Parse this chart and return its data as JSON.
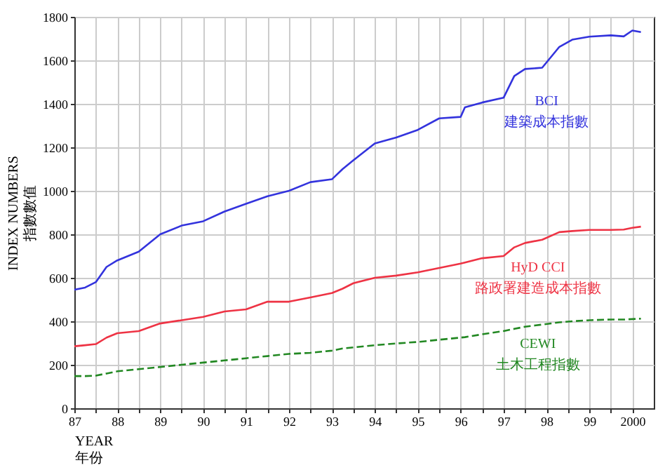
{
  "chart_data": {
    "type": "line",
    "xlabel": "YEAR\n年份",
    "ylabel": "INDEX NUMBERS\n指數數值",
    "x": [
      1987,
      1987.25,
      1987.5,
      1987.75,
      1988,
      1988.5,
      1989,
      1989.5,
      1990,
      1990.5,
      1991,
      1991.5,
      1992,
      1992.5,
      1993,
      1993.25,
      1993.5,
      1994,
      1994.5,
      1995,
      1995.5,
      1996,
      1996.1,
      1996.5,
      1997,
      1997.25,
      1997.5,
      1997.9,
      1998.3,
      1998.6,
      1999,
      1999.5,
      1999.8,
      2000,
      2000.2
    ],
    "series": [
      {
        "color": "#3333dd",
        "line_style": "solid",
        "values": [
          545,
          555,
          580,
          650,
          680,
          720,
          800,
          840,
          860,
          905,
          940,
          975,
          1000,
          1040,
          1053,
          1100,
          1140,
          1218,
          1245,
          1280,
          1333,
          1340,
          1384,
          1406,
          1428,
          1528,
          1560,
          1566,
          1662,
          1695,
          1709,
          1715,
          1710,
          1737,
          1730
        ]
      },
      {
        "color": "#ee3344",
        "line_style": "solid",
        "values": [
          285,
          290,
          295,
          325,
          345,
          355,
          390,
          405,
          420,
          445,
          455,
          490,
          490,
          510,
          530,
          550,
          575,
          600,
          610,
          625,
          645,
          665,
          670,
          690,
          700,
          740,
          760,
          775,
          810,
          815,
          820,
          820,
          822,
          830,
          835
        ]
      },
      {
        "color": "#228822",
        "line_style": "dashed",
        "values": [
          148,
          148,
          150,
          160,
          170,
          180,
          190,
          200,
          210,
          220,
          230,
          240,
          250,
          255,
          265,
          275,
          280,
          290,
          298,
          305,
          315,
          325,
          327,
          340,
          355,
          365,
          375,
          385,
          395,
          400,
          405,
          408,
          408,
          410,
          412
        ]
      }
    ],
    "annotations": [
      "BCI\n建築成本指數",
      "HyD CCI\n路政署建造成本指數",
      "CEWI\n土木工程指數"
    ],
    "xlim": [
      1987,
      2000.5
    ],
    "ylim": [
      0,
      1800
    ],
    "xticks": [
      {
        "value": 1987,
        "label": "87"
      },
      {
        "value": 1987.5,
        "label": null
      },
      {
        "value": 1988,
        "label": "88"
      },
      {
        "value": 1988.5,
        "label": null
      },
      {
        "value": 1989,
        "label": "89"
      },
      {
        "value": 1989.5,
        "label": null
      },
      {
        "value": 1990,
        "label": "90"
      },
      {
        "value": 1990.5,
        "label": null
      },
      {
        "value": 1991,
        "label": "91"
      },
      {
        "value": 1991.5,
        "label": null
      },
      {
        "value": 1992,
        "label": "92"
      },
      {
        "value": 1992.5,
        "label": null
      },
      {
        "value": 1993,
        "label": "93"
      },
      {
        "value": 1993.5,
        "label": null
      },
      {
        "value": 1994,
        "label": "94"
      },
      {
        "value": 1994.5,
        "label": null
      },
      {
        "value": 1995,
        "label": "95"
      },
      {
        "value": 1995.5,
        "label": null
      },
      {
        "value": 1996,
        "label": "96"
      },
      {
        "value": 1996.5,
        "label": null
      },
      {
        "value": 1997,
        "label": "97"
      },
      {
        "value": 1997.5,
        "label": null
      },
      {
        "value": 1998,
        "label": "98"
      },
      {
        "value": 1998.5,
        "label": null
      },
      {
        "value": 1999,
        "label": "99"
      },
      {
        "value": 1999.5,
        "label": null
      },
      {
        "value": 2000,
        "label": "2000"
      }
    ],
    "yticks": [
      0,
      200,
      400,
      600,
      800,
      1000,
      1200,
      1400,
      1600,
      1800
    ],
    "grid": true,
    "marker": "none"
  }
}
